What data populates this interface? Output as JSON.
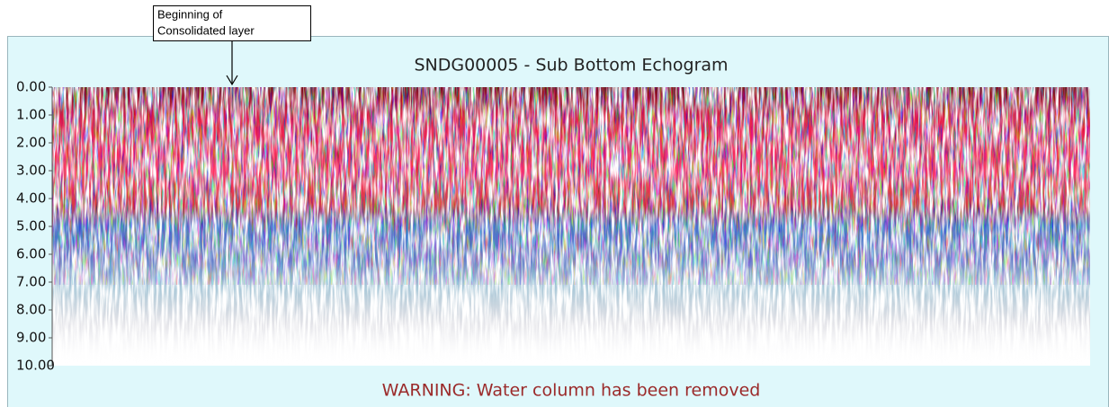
{
  "chart_data": {
    "type": "echogram",
    "title": "SNDG00005 - Sub Bottom Echogram",
    "annotation": [
      "Beginning of",
      "Consolidated layer"
    ],
    "warning": "WARNING: Water column has been removed",
    "ylim": [
      0,
      10
    ],
    "yticks": [
      {
        "value": 0,
        "label": "0.00"
      },
      {
        "value": 1,
        "label": "1.00"
      },
      {
        "value": 2,
        "label": "2.00"
      },
      {
        "value": 3,
        "label": "3.00"
      },
      {
        "value": 4,
        "label": "4.00"
      },
      {
        "value": 5,
        "label": "5.00"
      },
      {
        "value": 6,
        "label": "6.00"
      },
      {
        "value": 7,
        "label": "7.00"
      },
      {
        "value": 8,
        "label": "8.00"
      },
      {
        "value": 9,
        "label": "9.00"
      },
      {
        "value": 10,
        "label": "10.00"
      }
    ],
    "inverted_y": true
  }
}
